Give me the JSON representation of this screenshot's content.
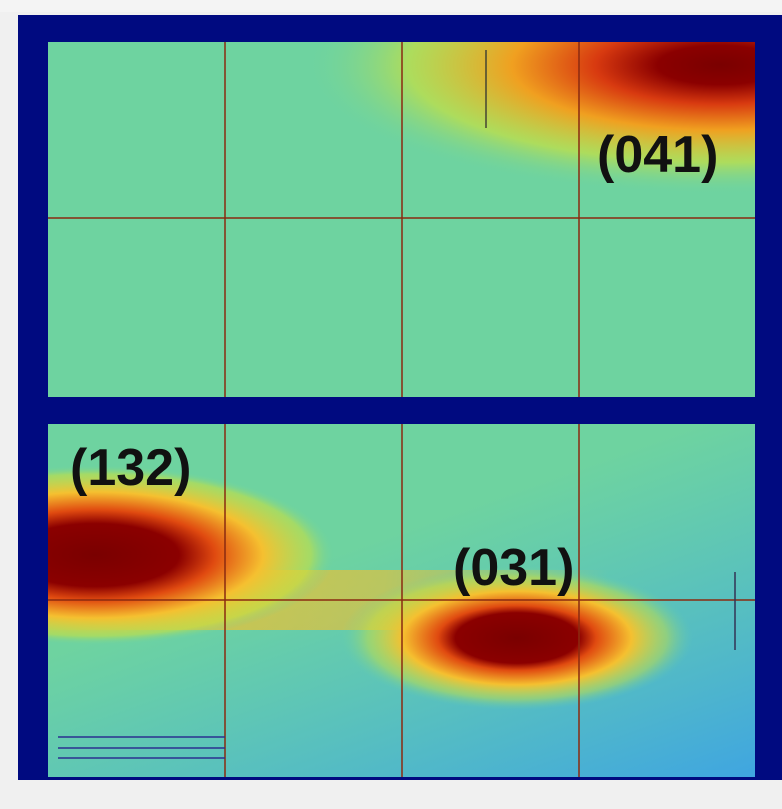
{
  "peaks": [
    {
      "label": "(041)"
    },
    {
      "label": "(132)"
    },
    {
      "label": "(031)"
    }
  ]
}
